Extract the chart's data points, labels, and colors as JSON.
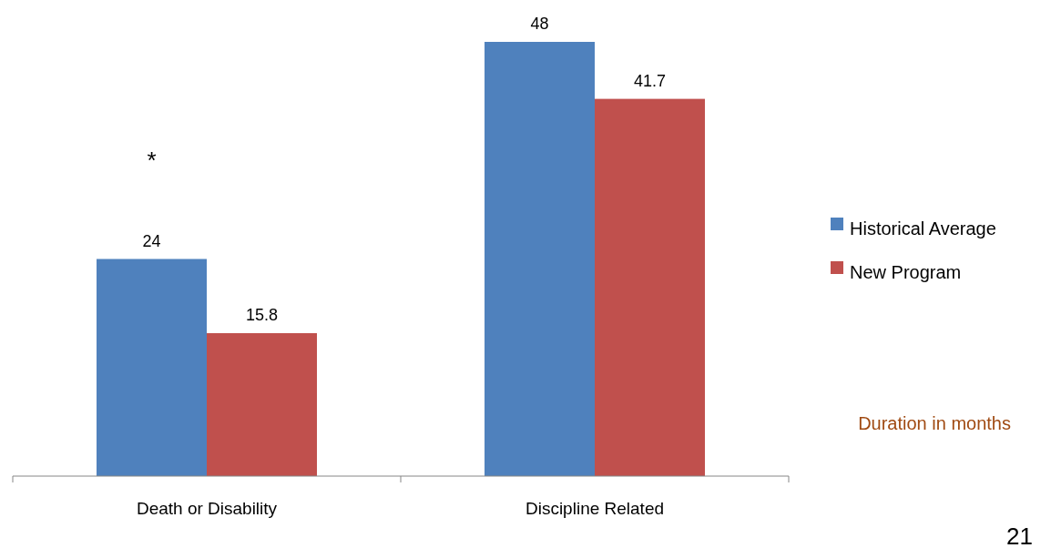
{
  "chart_data": {
    "type": "bar",
    "categories": [
      "Death or Disability",
      "Discipline Related"
    ],
    "series": [
      {
        "name": "Historical Average",
        "color": "#4f81bd",
        "values": [
          24,
          48
        ]
      },
      {
        "name": "New Program",
        "color": "#c0504d",
        "values": [
          15.8,
          41.7
        ]
      }
    ],
    "data_labels": true,
    "legend": "right",
    "annotations": [
      "*",
      "Duration in months",
      "21"
    ]
  }
}
